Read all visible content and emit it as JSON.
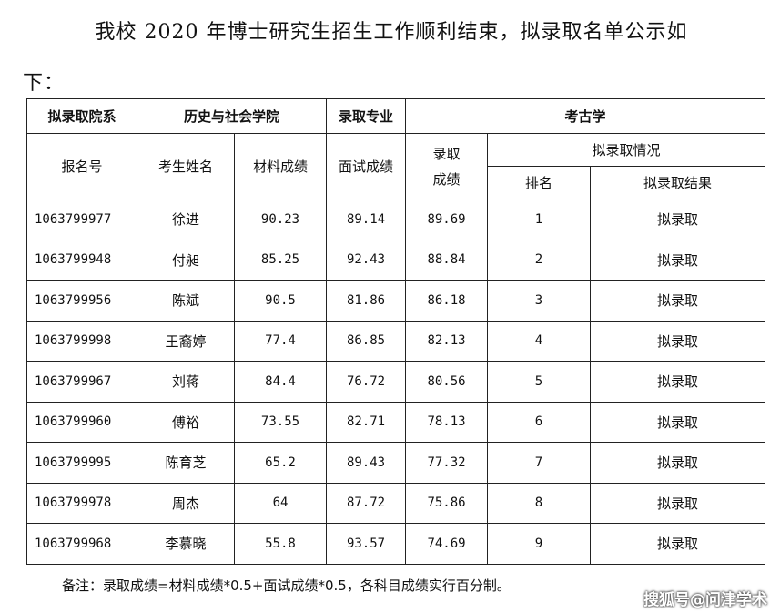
{
  "intro": {
    "line1": "我校 2020 年博士研究生招生工作顺利结束，拟录取名单公示如",
    "line2": "下："
  },
  "table": {
    "dept_label": "拟录取院系",
    "dept_value": "历史与社会学院",
    "major_label": "录取专业",
    "major_value": "考古学",
    "col_id": "报名号",
    "col_name": "考生姓名",
    "col_material": "材料成绩",
    "col_interview": "面试成绩",
    "col_final_line1": "录取",
    "col_final_line2": "成绩",
    "col_status_group": "拟录取情况",
    "col_rank": "排名",
    "col_result": "拟录取结果",
    "rows": [
      {
        "id": "1063799977",
        "name": "徐进",
        "material": "90.23",
        "interview": "89.14",
        "final": "89.69",
        "rank": "1",
        "result": "拟录取"
      },
      {
        "id": "1063799948",
        "name": "付昶",
        "material": "85.25",
        "interview": "92.43",
        "final": "88.84",
        "rank": "2",
        "result": "拟录取"
      },
      {
        "id": "1063799956",
        "name": "陈斌",
        "material": "90.5",
        "interview": "81.86",
        "final": "86.18",
        "rank": "3",
        "result": "拟录取"
      },
      {
        "id": "1063799998",
        "name": "王裔婷",
        "material": "77.4",
        "interview": "86.85",
        "final": "82.13",
        "rank": "4",
        "result": "拟录取"
      },
      {
        "id": "1063799967",
        "name": "刘蒋",
        "material": "84.4",
        "interview": "76.72",
        "final": "80.56",
        "rank": "5",
        "result": "拟录取"
      },
      {
        "id": "1063799960",
        "name": "傅裕",
        "material": "73.55",
        "interview": "82.71",
        "final": "78.13",
        "rank": "6",
        "result": "拟录取"
      },
      {
        "id": "1063799995",
        "name": "陈育芝",
        "material": "65.2",
        "interview": "89.43",
        "final": "77.32",
        "rank": "7",
        "result": "拟录取"
      },
      {
        "id": "1063799978",
        "name": "周杰",
        "material": "64",
        "interview": "87.72",
        "final": "75.86",
        "rank": "8",
        "result": "拟录取"
      },
      {
        "id": "1063799968",
        "name": "李慕晓",
        "material": "55.8",
        "interview": "93.57",
        "final": "74.69",
        "rank": "9",
        "result": "拟录取"
      }
    ]
  },
  "note": "备注：录取成绩=材料成绩*0.5+面试成绩*0.5，各科目成绩实行百分制。",
  "watermark": "搜狐号@问津学术"
}
